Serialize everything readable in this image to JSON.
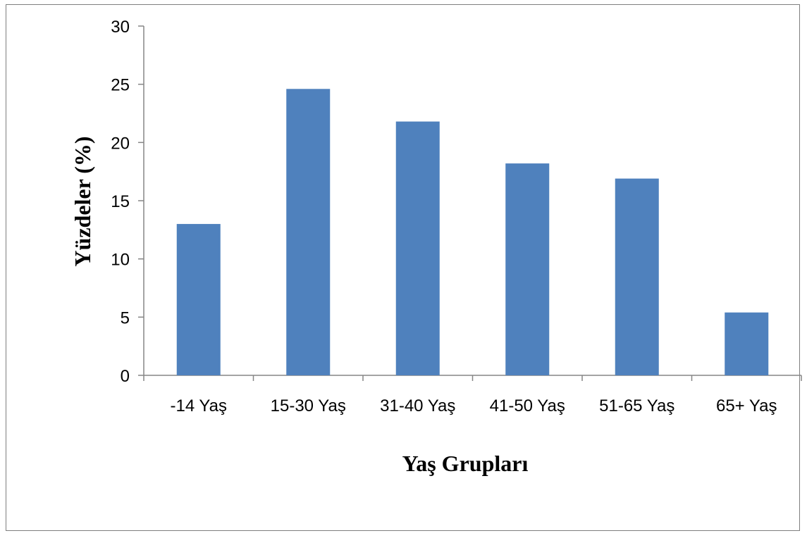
{
  "chart_data": {
    "type": "bar",
    "categories": [
      "-14 Yaş",
      "15-30 Yaş",
      "31-40 Yaş",
      "41-50 Yaş",
      "51-65 Yaş",
      "65+ Yaş"
    ],
    "values": [
      13.0,
      24.6,
      21.8,
      18.2,
      16.9,
      5.4
    ],
    "xlabel": "Yaş Grupları",
    "ylabel": "Yüzdeler (%)",
    "ylim": [
      0,
      30
    ],
    "yticks": [
      "0",
      "5",
      "10",
      "15",
      "20",
      "25",
      "30"
    ],
    "grid": false,
    "legend": "none",
    "bar_color": "#4f81bd",
    "axis_color": "#868686"
  }
}
